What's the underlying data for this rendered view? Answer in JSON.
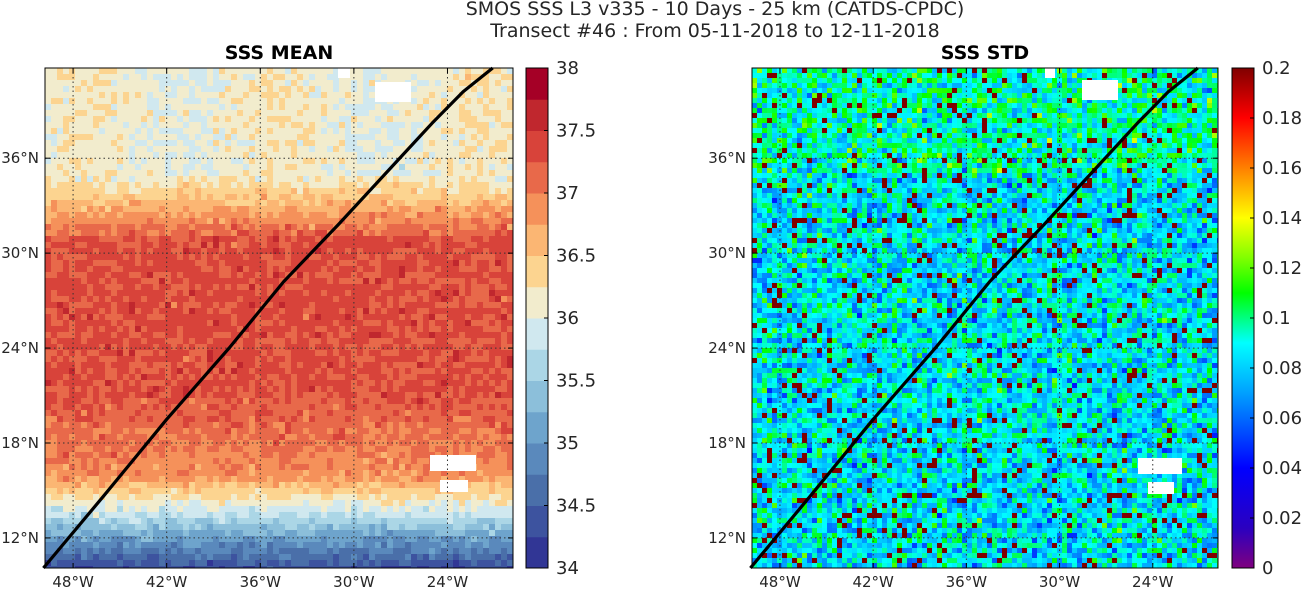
{
  "header": {
    "title_line1": "SMOS SSS L3 v335 - 10 Days - 25 km (CATDS-CPDC)",
    "title_line2": "Transect #46 : From 05-11-2018 to 12-11-2018"
  },
  "chart_data": [
    {
      "type": "heatmap",
      "title": "SSS MEAN",
      "x_ticks": [
        -48,
        -42,
        -36,
        -30,
        -24
      ],
      "x_tick_labels": [
        "48°W",
        "42°W",
        "36°W",
        "30°W",
        "24°W"
      ],
      "y_ticks": [
        12,
        18,
        24,
        30,
        36
      ],
      "y_tick_labels": [
        "12°N",
        "18°N",
        "24°N",
        "30°N",
        "36°N"
      ],
      "xlim": [
        -49.8,
        -19.8
      ],
      "ylim": [
        10.1,
        41.7
      ],
      "grid": true,
      "colormap": "RdYlBu_r (discrete)",
      "colorbar": {
        "range": [
          34,
          38
        ],
        "ticks": [
          34,
          34.5,
          35,
          35.5,
          36,
          36.5,
          37,
          37.5,
          38
        ],
        "tick_labels": [
          "34",
          "34.5",
          "35",
          "35.5",
          "36",
          "36.5",
          "37",
          "37.5",
          "38"
        ]
      },
      "field_description": "High salinity (~37-37.5) between 20N-32N, fresher (~34-35.5) south of 14N, ~36 north of 36N",
      "transect": {
        "lon": [
          -49.9,
          -46.0,
          -42.0,
          -38.0,
          -34.5,
          -31.0,
          -28.0,
          -25.0,
          -23.0,
          -21.1
        ],
        "lat": [
          10.1,
          14.7,
          19.5,
          24.0,
          28.2,
          31.8,
          35.0,
          38.2,
          40.2,
          41.7
        ]
      }
    },
    {
      "type": "heatmap",
      "title": "SSS STD",
      "x_ticks": [
        -48,
        -42,
        -36,
        -30,
        -24
      ],
      "x_tick_labels": [
        "48°W",
        "42°W",
        "36°W",
        "30°W",
        "24°W"
      ],
      "y_ticks": [
        12,
        18,
        24,
        30,
        36
      ],
      "y_tick_labels": [
        "12°N",
        "18°N",
        "24°N",
        "30°N",
        "36°N"
      ],
      "xlim": [
        -49.8,
        -19.8
      ],
      "ylim": [
        10.1,
        41.7
      ],
      "grid": true,
      "colormap": "jet",
      "colorbar": {
        "range": [
          0,
          0.2
        ],
        "ticks": [
          0,
          0.02,
          0.04,
          0.06,
          0.08,
          0.1,
          0.12,
          0.14,
          0.16,
          0.18,
          0.2
        ],
        "tick_labels": [
          "0",
          "0.02",
          "0.04",
          "0.06",
          "0.08",
          "0.1",
          "0.12",
          "0.14",
          "0.16",
          "0.18",
          "0.2"
        ]
      },
      "field_description": "Noisy field mostly 0.04-0.12 with scattered patches saturating at 0.2",
      "transect": {
        "lon": [
          -49.9,
          -46.0,
          -42.0,
          -38.0,
          -34.5,
          -31.0,
          -28.0,
          -25.0,
          -23.0,
          -21.1
        ],
        "lat": [
          10.1,
          14.7,
          19.5,
          24.0,
          28.2,
          31.8,
          35.0,
          38.2,
          40.2,
          41.7
        ]
      }
    }
  ]
}
